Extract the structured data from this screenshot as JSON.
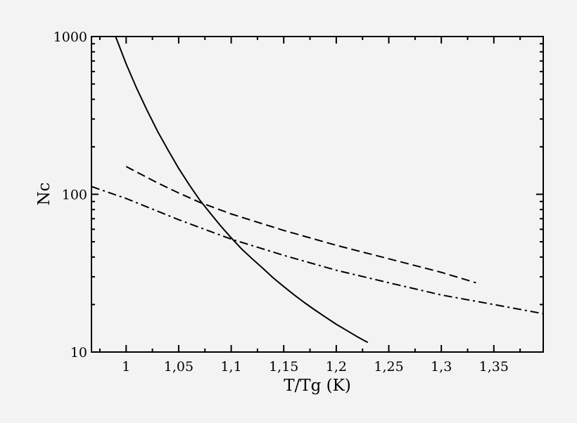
{
  "chart_data": {
    "type": "line",
    "xlabel": "T/Tg (K)",
    "ylabel": "Nc",
    "xlim": [
      0.967,
      1.397
    ],
    "ylim": [
      10,
      1000
    ],
    "y_scale": "log",
    "grid": false,
    "x_ticks": [
      {
        "value": 1,
        "label": "1"
      },
      {
        "value": 1.05,
        "label": "1,05"
      },
      {
        "value": 1.1,
        "label": "1,1"
      },
      {
        "value": 1.15,
        "label": "1,15"
      },
      {
        "value": 1.2,
        "label": "1,2"
      },
      {
        "value": 1.25,
        "label": "1,25"
      },
      {
        "value": 1.3,
        "label": "1,3"
      },
      {
        "value": 1.35,
        "label": "1,35"
      }
    ],
    "y_ticks": [
      {
        "value": 10,
        "label": "10"
      },
      {
        "value": 100,
        "label": "100"
      },
      {
        "value": 1000,
        "label": "1000"
      }
    ],
    "series": [
      {
        "style": "solid",
        "x": [
          0.99,
          1.0,
          1.01,
          1.02,
          1.03,
          1.04,
          1.05,
          1.06,
          1.07,
          1.08,
          1.09,
          1.1,
          1.11,
          1.12,
          1.13,
          1.14,
          1.15,
          1.16,
          1.17,
          1.18,
          1.19,
          1.2,
          1.21,
          1.22,
          1.23
        ],
        "y": [
          1000,
          670,
          470,
          340,
          250,
          190,
          146,
          115,
          92,
          76,
          63,
          53,
          45,
          39,
          34,
          29.5,
          26,
          23,
          20.5,
          18.4,
          16.6,
          15.0,
          13.7,
          12.5,
          11.5
        ]
      },
      {
        "style": "dashed",
        "x": [
          1.0,
          1.03,
          1.05,
          1.07,
          1.1,
          1.15,
          1.2,
          1.25,
          1.3,
          1.333
        ],
        "y": [
          150,
          118,
          102,
          89,
          75,
          59,
          47.5,
          39,
          32,
          27.5
        ]
      },
      {
        "style": "dashdot",
        "x": [
          0.967,
          1.0,
          1.05,
          1.1,
          1.15,
          1.2,
          1.25,
          1.3,
          1.35,
          1.397
        ],
        "y": [
          112,
          94,
          69,
          52,
          41,
          33,
          27.5,
          23,
          20,
          17.5
        ]
      }
    ]
  }
}
